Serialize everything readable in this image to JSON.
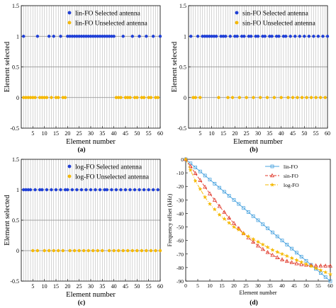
{
  "chart_data": [
    {
      "type": "scatter",
      "panel_label": "(a)",
      "xlabel": "Element number",
      "ylabel": "Element selected",
      "xlim": [
        0,
        60
      ],
      "ylim": [
        -0.5,
        1.5
      ],
      "xticks": [
        5,
        10,
        15,
        20,
        25,
        30,
        35,
        40,
        45,
        50,
        55,
        60
      ],
      "yticks": [
        -0.5,
        0,
        0.5,
        1,
        1.5
      ],
      "ytick_labels": [
        "-0.5",
        "0",
        "0.5",
        "1",
        "1.5"
      ],
      "vgrid": "every element",
      "hgrid": "at ticks",
      "legend_position": "top-right",
      "series": [
        {
          "name": "lin-FO Selected antenna",
          "color": "#1f3fd6",
          "marker": "circle",
          "y": 1,
          "x": [
            1,
            7,
            12,
            14,
            17,
            20,
            21,
            22,
            23,
            24,
            25,
            26,
            27,
            28,
            29,
            30,
            31,
            32,
            33,
            34,
            35,
            36,
            37,
            38,
            39,
            40,
            44,
            48,
            51,
            54,
            57,
            60
          ]
        },
        {
          "name": "lin-FO Unselected antenna",
          "color": "#f5b800",
          "marker": "circle",
          "y": 0,
          "x": [
            1,
            2,
            3,
            4,
            5,
            6,
            8,
            9,
            10,
            11,
            13,
            15,
            16,
            18,
            19,
            41,
            42,
            43,
            45,
            46,
            47,
            49,
            50,
            52,
            53,
            55,
            56,
            58,
            59
          ]
        }
      ]
    },
    {
      "type": "scatter",
      "panel_label": "(b)",
      "xlabel": "Element number",
      "ylabel": "Element selected",
      "xlim": [
        0,
        60
      ],
      "ylim": [
        -0.5,
        1.5
      ],
      "xticks": [
        5,
        10,
        15,
        20,
        25,
        30,
        35,
        40,
        45,
        50,
        55,
        60
      ],
      "yticks": [
        -0.5,
        0,
        0.5,
        1,
        1.5
      ],
      "ytick_labels": [
        "-0.5",
        "0",
        "0.5",
        "1",
        "1.5"
      ],
      "vgrid": "every element",
      "hgrid": "at ticks",
      "legend_position": "top-right",
      "series": [
        {
          "name": "sin-FO Selected antenna",
          "color": "#1f3fd6",
          "marker": "circle",
          "y": 1,
          "x": [
            1,
            4,
            6,
            7,
            8,
            9,
            10,
            11,
            12,
            14,
            15,
            16,
            18,
            20,
            21,
            23,
            24,
            26,
            27,
            29,
            30,
            32,
            33,
            35,
            36,
            38,
            39,
            41,
            42,
            44,
            46,
            48,
            50,
            52,
            54,
            56,
            58,
            60
          ]
        },
        {
          "name": "sin-FO Unselected antenna",
          "color": "#f5b800",
          "marker": "circle",
          "y": 0,
          "x": [
            2,
            3,
            5,
            13,
            17,
            19,
            22,
            25,
            28,
            31,
            34,
            37,
            40,
            43,
            45,
            47,
            49,
            51,
            53,
            55,
            57,
            59
          ]
        }
      ]
    },
    {
      "type": "scatter",
      "panel_label": "(c)",
      "xlabel": "Element number",
      "ylabel": "Element selected",
      "xlim": [
        0,
        60
      ],
      "ylim": [
        -0.5,
        1.5
      ],
      "xticks": [
        5,
        10,
        15,
        20,
        25,
        30,
        35,
        40,
        45,
        50,
        55,
        60
      ],
      "yticks": [
        -0.5,
        0,
        0.5,
        1,
        1.5
      ],
      "ytick_labels": [
        "-0.5",
        "0",
        "0.5",
        "1",
        "1.5"
      ],
      "vgrid": "every element",
      "hgrid": "at ticks",
      "legend_position": "top-right",
      "series": [
        {
          "name": "log-FO Selected antenna",
          "color": "#1f3fd6",
          "marker": "circle",
          "y": 1,
          "x": [
            1,
            2,
            3,
            4,
            6,
            8,
            9,
            11,
            13,
            15,
            17,
            19,
            20,
            22,
            24,
            26,
            28,
            30,
            32,
            34,
            36,
            37,
            39,
            41,
            43,
            45,
            47,
            49,
            51,
            53,
            55,
            57,
            59
          ]
        },
        {
          "name": "log-FO Unselected antenna",
          "color": "#f5b800",
          "marker": "circle",
          "y": 0,
          "x": [
            5,
            7,
            10,
            12,
            14,
            16,
            18,
            21,
            23,
            25,
            27,
            29,
            31,
            33,
            35,
            38,
            40,
            42,
            44,
            46,
            48,
            50,
            52,
            54,
            56,
            58,
            60
          ]
        }
      ]
    },
    {
      "type": "line",
      "panel_label": "(d)",
      "xlabel": "Element number",
      "ylabel": "Frequency offset (kHz)",
      "xlim": [
        0,
        60
      ],
      "ylim": [
        -90,
        0
      ],
      "xticks": [
        0,
        5,
        10,
        15,
        20,
        25,
        30,
        35,
        40,
        45,
        50,
        55,
        60
      ],
      "yticks": [
        -90,
        -80,
        -70,
        -60,
        -50,
        -40,
        -30,
        -20,
        -10,
        0
      ],
      "ytick_labels": [
        "-90",
        "-80",
        "-70",
        "-60",
        "-50",
        "-40",
        "-30",
        "-20",
        "-10",
        "0"
      ],
      "grid": false,
      "legend_position": "top-right",
      "x": [
        0,
        2,
        4,
        6,
        8,
        10,
        12,
        14,
        16,
        18,
        20,
        22,
        24,
        26,
        28,
        30,
        32,
        34,
        36,
        38,
        40,
        42,
        44,
        46,
        48,
        50,
        52,
        54,
        56,
        58,
        60
      ],
      "series": [
        {
          "name": "lin-FO",
          "color": "#4aa3df",
          "marker": "square",
          "dash": "solid",
          "values": [
            0,
            -3,
            -6,
            -9,
            -12,
            -15,
            -18,
            -21,
            -24,
            -27,
            -30,
            -33,
            -36,
            -39,
            -42,
            -45,
            -48,
            -51,
            -54,
            -57,
            -60,
            -63,
            -66,
            -69,
            -72,
            -75,
            -78,
            -81,
            -84,
            -87,
            -90
          ]
        },
        {
          "name": "sin-FO",
          "color": "#e0392b",
          "marker": "triangle",
          "dash": "dashed",
          "values": [
            0,
            -5.2,
            -10.4,
            -15.5,
            -20.5,
            -25.4,
            -30.1,
            -34.7,
            -39.1,
            -43.3,
            -47.3,
            -51.1,
            -54.7,
            -58,
            -61.1,
            -63.9,
            -66.5,
            -68.8,
            -70.8,
            -72.6,
            -74.1,
            -75.3,
            -76.3,
            -77.1,
            -77.7,
            -78.1,
            -78.4,
            -78.6,
            -78.7,
            -78.8,
            -78.8
          ]
        },
        {
          "name": "log-FO",
          "color": "#f5b800",
          "marker": "star",
          "dash": "dashdot",
          "values": [
            0,
            -8,
            -16,
            -22,
            -28,
            -33,
            -37,
            -41,
            -44,
            -47,
            -50,
            -52,
            -55,
            -57,
            -59,
            -61,
            -63,
            -65,
            -67,
            -68.5,
            -70,
            -71.5,
            -73,
            -74.5,
            -76,
            -77.5,
            -79,
            -80.5,
            -82,
            -83.5,
            -85
          ]
        }
      ]
    }
  ]
}
